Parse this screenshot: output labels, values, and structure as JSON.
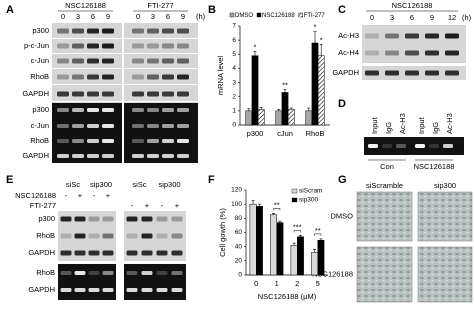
{
  "panel_A": {
    "label": "A",
    "groups": [
      "NSC126188",
      "FTI-277"
    ],
    "times": [
      "0",
      "3",
      "6",
      "9"
    ],
    "unit": "(h)",
    "rows_top": [
      "p300",
      "p-c-Jun",
      "c-Jun",
      "RhoB",
      "GAPDH"
    ],
    "rows_bottom": [
      "p300",
      "c-Jun",
      "RhoB",
      "GAPDH"
    ]
  },
  "panel_C": {
    "label": "C",
    "group": "NSC126188",
    "times": [
      "0",
      "3",
      "6",
      "9",
      "12"
    ],
    "unit": "(h)",
    "rows": [
      "Ac-H3",
      "Ac-H4",
      "GAPDH"
    ]
  },
  "panel_D": {
    "label": "D",
    "lanes": [
      "Input",
      "IgG",
      "Ac-H3",
      "Input",
      "IgG",
      "Ac-H3"
    ],
    "groups": [
      "Con",
      "NSC126188"
    ]
  },
  "panel_E": {
    "label": "E",
    "columns": [
      "siSc",
      "sip300",
      "siSc",
      "sip300"
    ],
    "treatments": [
      {
        "name": "NSC126188",
        "signs": [
          "-",
          "+",
          "-",
          "+"
        ]
      },
      {
        "name": "FTI-277",
        "signs": [
          "-",
          "+",
          "-",
          "+"
        ]
      }
    ],
    "rows_top": [
      "p300",
      "RhoB",
      "GAPDH"
    ],
    "rows_bottom": [
      "RhoB",
      "GAPDH"
    ]
  },
  "panel_G": {
    "label": "G",
    "columns": [
      "siScramble",
      "sip300"
    ],
    "rows": [
      "DMSO",
      "NSC126188"
    ]
  },
  "chart_data": [
    {
      "type": "bar",
      "panel_label": "B",
      "ylabel": "mRNA level",
      "categories": [
        "p300",
        "cJun",
        "RhoB"
      ],
      "series": [
        {
          "name": "DMSO",
          "color": "#a6a6a6",
          "values": [
            1,
            1,
            1
          ],
          "errors": [
            0.15,
            0.1,
            0.2
          ]
        },
        {
          "name": "NSC126188",
          "color": "#000000",
          "values": [
            4.9,
            2.3,
            5.8
          ],
          "errors": [
            0.3,
            0.2,
            0.8
          ]
        },
        {
          "name": "FTI-277",
          "color": "#ffffff",
          "pattern": "hatch",
          "values": [
            1.1,
            1.1,
            4.9
          ],
          "errors": [
            0.15,
            0.1,
            0.8
          ]
        }
      ],
      "annotations": [
        "*",
        "**",
        "*",
        "*"
      ],
      "ylim": [
        0,
        7
      ],
      "yticks": [
        0,
        1,
        2,
        3,
        4,
        5,
        6,
        7
      ],
      "legend": "top"
    },
    {
      "type": "bar",
      "panel_label": "F",
      "ylabel": "Cell gowth (%)",
      "xlabel": "NSC126188 (μM)",
      "categories": [
        "0",
        "1",
        "2",
        "5"
      ],
      "series": [
        {
          "name": "siScram",
          "color": "#d9d9d9",
          "values": [
            100,
            85,
            42,
            32
          ],
          "errors": [
            5,
            2,
            3,
            4
          ]
        },
        {
          "name": "sip300",
          "color": "#000000",
          "values": [
            97,
            74,
            54,
            49
          ],
          "errors": [
            3,
            2,
            2,
            2
          ]
        }
      ],
      "annotations": [
        "**",
        "***",
        "**"
      ],
      "ylim": [
        0,
        120
      ],
      "yticks": [
        0,
        20,
        40,
        60,
        80,
        100,
        120
      ],
      "legend": "upper right"
    }
  ]
}
